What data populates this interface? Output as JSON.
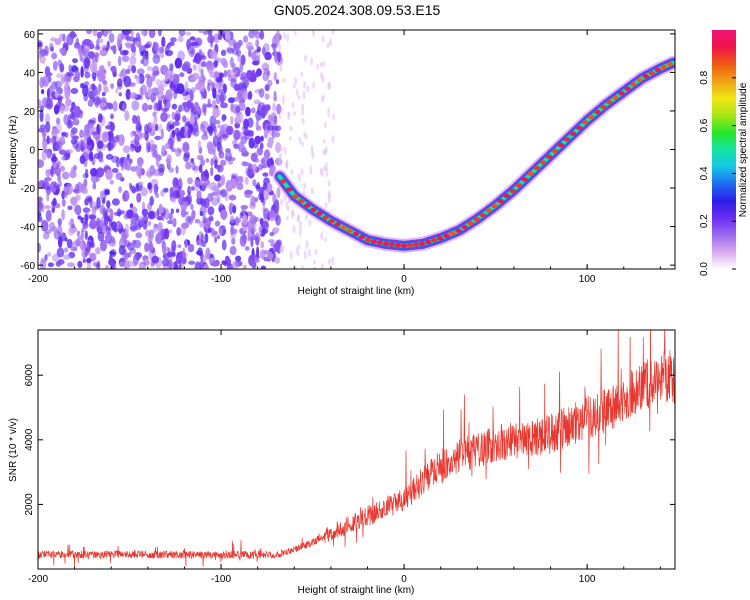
{
  "title": "GN05.2024.308.09.53.E15",
  "chart_data": [
    {
      "type": "heatmap",
      "xlabel": "Height of straight line (km)",
      "ylabel": "Frequency (Hz)",
      "xlim": [
        -200,
        148
      ],
      "ylim": [
        -62,
        62
      ],
      "xticks": [
        "-200",
        "-100",
        "0",
        "100"
      ],
      "yticks": [
        "60",
        "40",
        "20",
        "0",
        "-20",
        "-40",
        "-60"
      ],
      "colorbar": {
        "label": "Normalized spectral amplitude",
        "range": [
          0,
          1
        ],
        "ticks": [
          "0.0",
          "0.2",
          "0.4",
          "0.6",
          "0.8"
        ],
        "colors": [
          "#ffffff",
          "#d9a8f0",
          "#9b6af0",
          "#6a2cf0",
          "#2b1ee8",
          "#1e6ef0",
          "#14c8e6",
          "#14e6a0",
          "#28e628",
          "#aae614",
          "#f0e614",
          "#f0a014",
          "#f05a14",
          "#f0144b",
          "#f01478"
        ]
      },
      "noise_region_xmax": -68,
      "ridge": {
        "x": [
          -68,
          -60,
          -50,
          -40,
          -30,
          -20,
          -10,
          0,
          10,
          20,
          30,
          40,
          50,
          60,
          70,
          80,
          90,
          100,
          110,
          120,
          130,
          140,
          147
        ],
        "y": [
          -14,
          -24,
          -31,
          -37,
          -42,
          -47,
          -49,
          -50,
          -49,
          -46,
          -42,
          -36,
          -29,
          -21,
          -12,
          -3,
          6,
          15,
          23,
          30,
          37,
          42,
          45
        ]
      }
    },
    {
      "type": "line",
      "xlabel": "Height of straight line (km)",
      "ylabel": "SNR (10 * v/v)",
      "xlim": [
        -200,
        148
      ],
      "ylim": [
        0,
        7400
      ],
      "xticks": [
        "-200",
        "-100",
        "0",
        "100"
      ],
      "yticks": [
        "2000",
        "4000",
        "6000"
      ],
      "color": "#e8372e",
      "trend": {
        "x": [
          -200,
          -150,
          -100,
          -70,
          -55,
          -40,
          -25,
          -10,
          0,
          10,
          20,
          30,
          40,
          50,
          60,
          70,
          80,
          90,
          100,
          110,
          120,
          130,
          140,
          147
        ],
        "y": [
          450,
          450,
          430,
          450,
          700,
          1100,
          1500,
          1900,
          2200,
          2700,
          3200,
          3500,
          3700,
          3900,
          3950,
          4000,
          4200,
          4400,
          4700,
          4900,
          5300,
          5600,
          5900,
          6000
        ]
      }
    }
  ]
}
